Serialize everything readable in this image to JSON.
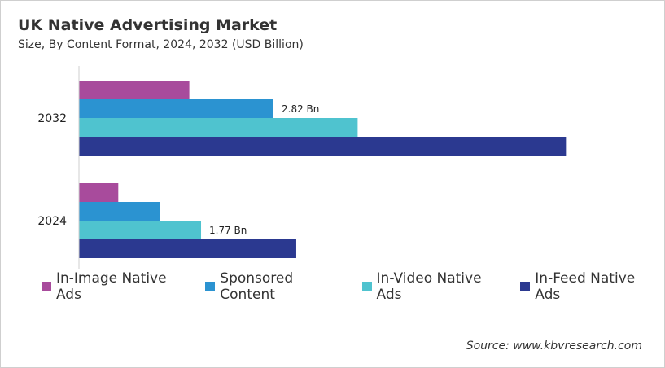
{
  "chart_data": {
    "type": "bar",
    "orientation": "horizontal",
    "title": "UK Native Advertising Market",
    "subtitle": "Size, By Content Format, 2024, 2032 (USD Billion)",
    "categories": [
      "2032",
      "2024"
    ],
    "series": [
      {
        "name": "In-Image Native Ads",
        "color": "#a84b9c",
        "values": [
          1.6,
          0.57
        ]
      },
      {
        "name": "Sponsored Content",
        "color": "#2b93d1",
        "values": [
          2.82,
          1.17
        ]
      },
      {
        "name": "In-Video Native Ads",
        "color": "#4fc3cf",
        "values": [
          4.04,
          1.77
        ]
      },
      {
        "name": "In-Feed Native Ads",
        "color": "#2b3990",
        "values": [
          7.06,
          3.15
        ]
      }
    ],
    "data_labels": [
      {
        "category": "2032",
        "series": "Sponsored Content",
        "text": "2.82 Bn"
      },
      {
        "category": "2024",
        "series": "In-Video Native Ads",
        "text": "1.77 Bn"
      }
    ],
    "xlim": [
      0,
      8
    ],
    "grid": false,
    "legend_position": "bottom",
    "source": "Source: www.kbvresearch.com"
  }
}
